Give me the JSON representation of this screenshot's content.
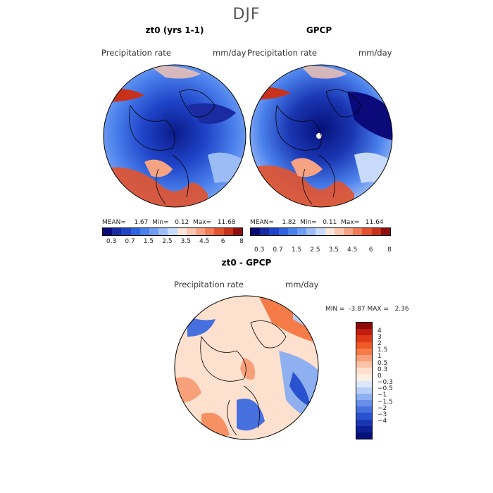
{
  "page_title": "DJF",
  "panels": [
    {
      "title": "zt0 (yrs 1-1)",
      "left_label": "Precipitation rate",
      "right_label": "mm/day",
      "stats": {
        "mean_label": "MEAN=",
        "mean": "1.67",
        "min_label": "Min=",
        "min": "0.12",
        "max_label": "Max=",
        "max": "11.68"
      }
    },
    {
      "title": "GPCP",
      "left_label": "Precipitation rate",
      "right_label": "mm/day",
      "stats": {
        "mean_label": "MEAN=",
        "mean": "1.82",
        "min_label": "Min=",
        "min": "0.11",
        "max_label": "Max=",
        "max": "11.64"
      }
    }
  ],
  "small_colorbar": {
    "colors": [
      "#0a0a7a",
      "#1a2aa0",
      "#1f44c8",
      "#2f62e0",
      "#4a80ec",
      "#6e9cf2",
      "#9cbcf6",
      "#c7dafa",
      "#fbe6dc",
      "#f9c7b0",
      "#f6a383",
      "#f07b55",
      "#e2532e",
      "#c8321a",
      "#8e0f0f"
    ],
    "ticks": [
      "0.3",
      "0.7",
      "1.5",
      "2.5",
      "3.5",
      "4.5",
      "6",
      "8"
    ]
  },
  "diff_panel": {
    "title": "zt0 - GPCP",
    "left_label": "Precipitation rate",
    "right_label": "mm/day",
    "min_label": "MIN =",
    "min": "-3.87",
    "max_label": "MAX =",
    "max": "2.36"
  },
  "diff_colorbar": {
    "colors": [
      "#8e0a0a",
      "#c01e10",
      "#dc3a16",
      "#ee5a26",
      "#f57c48",
      "#f8a079",
      "#fbc3a6",
      "#fde0cd",
      "#fbeee3",
      "#dde8fb",
      "#b8cff7",
      "#8fb0f0",
      "#6a8fe8",
      "#4670de",
      "#2a52cf",
      "#1a36b2",
      "#0e1f95",
      "#05107a"
    ],
    "labels": [
      "4",
      "3",
      "2",
      "1.5",
      "1",
      "0.5",
      "0.3",
      "0",
      "−0.3",
      "−0.5",
      "−1",
      "−1.5",
      "−2",
      "−3",
      "−4"
    ]
  }
}
